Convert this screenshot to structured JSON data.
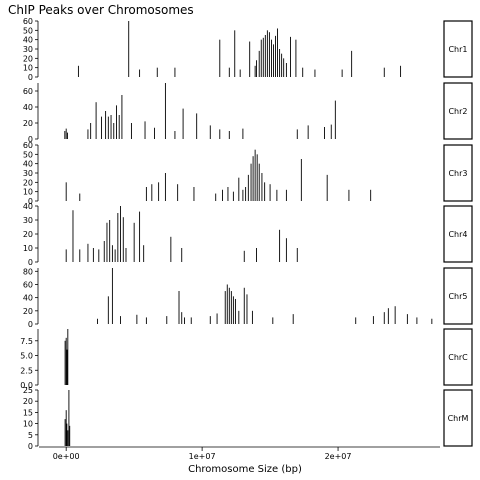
{
  "chart_data": {
    "type": "bar",
    "title": "ChIP Peaks over Chromosomes",
    "xlabel": "Chromosome Size (bp)",
    "ylabel": "",
    "xlim": [
      -2000000,
      27500000
    ],
    "x_ticks": [
      0,
      10000000,
      20000000
    ],
    "x_tick_labels": [
      "0e+00",
      "1e+07",
      "2e+07"
    ],
    "facets": [
      {
        "name": "Chr1",
        "ylim": [
          0,
          60
        ],
        "y_ticks": [
          0,
          10,
          20,
          30,
          40,
          50,
          60
        ],
        "peaks": [
          [
            900000,
            12
          ],
          [
            4600000,
            60
          ],
          [
            5400000,
            8
          ],
          [
            6700000,
            10
          ],
          [
            8000000,
            10
          ],
          [
            11300000,
            40
          ],
          [
            12000000,
            10
          ],
          [
            12400000,
            50
          ],
          [
            12800000,
            8
          ],
          [
            13500000,
            38
          ],
          [
            13900000,
            12
          ],
          [
            14000000,
            18
          ],
          [
            14200000,
            28
          ],
          [
            14350000,
            40
          ],
          [
            14500000,
            42
          ],
          [
            14650000,
            45
          ],
          [
            14800000,
            50
          ],
          [
            14950000,
            48
          ],
          [
            15100000,
            40
          ],
          [
            15250000,
            35
          ],
          [
            15400000,
            44
          ],
          [
            15550000,
            52
          ],
          [
            15700000,
            30
          ],
          [
            15850000,
            25
          ],
          [
            16000000,
            20
          ],
          [
            16200000,
            15
          ],
          [
            16500000,
            43
          ],
          [
            16900000,
            40
          ],
          [
            17400000,
            10
          ],
          [
            18300000,
            8
          ],
          [
            20300000,
            8
          ],
          [
            21000000,
            28
          ],
          [
            23400000,
            10
          ],
          [
            24600000,
            12
          ]
        ]
      },
      {
        "name": "Chr2",
        "ylim": [
          0,
          70
        ],
        "y_ticks": [
          0,
          20,
          40,
          60
        ],
        "peaks": [
          [
            -100000,
            10
          ],
          [
            0,
            13
          ],
          [
            100000,
            8
          ],
          [
            1600000,
            12
          ],
          [
            1800000,
            20
          ],
          [
            2200000,
            46
          ],
          [
            2600000,
            28
          ],
          [
            2900000,
            35
          ],
          [
            3100000,
            28
          ],
          [
            3300000,
            30
          ],
          [
            3500000,
            20
          ],
          [
            3700000,
            42
          ],
          [
            3900000,
            30
          ],
          [
            4100000,
            55
          ],
          [
            4800000,
            20
          ],
          [
            5800000,
            22
          ],
          [
            6500000,
            14
          ],
          [
            7300000,
            70
          ],
          [
            8000000,
            10
          ],
          [
            8600000,
            38
          ],
          [
            9600000,
            32
          ],
          [
            10600000,
            17
          ],
          [
            11300000,
            12
          ],
          [
            12000000,
            10
          ],
          [
            13000000,
            13
          ],
          [
            17000000,
            12
          ],
          [
            17800000,
            17
          ],
          [
            19000000,
            15
          ],
          [
            19500000,
            18
          ],
          [
            19800000,
            48
          ]
        ]
      },
      {
        "name": "Chr3",
        "ylim": [
          0,
          60
        ],
        "y_ticks": [
          0,
          10,
          20,
          30,
          40,
          50,
          60
        ],
        "peaks": [
          [
            0,
            20
          ],
          [
            1000000,
            8
          ],
          [
            5900000,
            15
          ],
          [
            6300000,
            18
          ],
          [
            6800000,
            20
          ],
          [
            7300000,
            30
          ],
          [
            8200000,
            18
          ],
          [
            9400000,
            15
          ],
          [
            11000000,
            8
          ],
          [
            11500000,
            12
          ],
          [
            11900000,
            15
          ],
          [
            12300000,
            10
          ],
          [
            12700000,
            25
          ],
          [
            13000000,
            12
          ],
          [
            13200000,
            15
          ],
          [
            13400000,
            28
          ],
          [
            13600000,
            40
          ],
          [
            13750000,
            48
          ],
          [
            13900000,
            55
          ],
          [
            14050000,
            50
          ],
          [
            14200000,
            40
          ],
          [
            14400000,
            30
          ],
          [
            14600000,
            20
          ],
          [
            15000000,
            18
          ],
          [
            15500000,
            12
          ],
          [
            16200000,
            12
          ],
          [
            17300000,
            45
          ],
          [
            19200000,
            28
          ],
          [
            20800000,
            12
          ],
          [
            22400000,
            12
          ]
        ]
      },
      {
        "name": "Chr4",
        "ylim": [
          0,
          40
        ],
        "y_ticks": [
          0,
          10,
          20,
          30,
          40
        ],
        "peaks": [
          [
            0,
            9
          ],
          [
            500000,
            37
          ],
          [
            1000000,
            9
          ],
          [
            1600000,
            13
          ],
          [
            2000000,
            10
          ],
          [
            2400000,
            9
          ],
          [
            2800000,
            15
          ],
          [
            3000000,
            28
          ],
          [
            3200000,
            30
          ],
          [
            3400000,
            12
          ],
          [
            3600000,
            9
          ],
          [
            3800000,
            35
          ],
          [
            4000000,
            40
          ],
          [
            4200000,
            32
          ],
          [
            4400000,
            10
          ],
          [
            5000000,
            28
          ],
          [
            5400000,
            36
          ],
          [
            5700000,
            12
          ],
          [
            7700000,
            18
          ],
          [
            8500000,
            10
          ],
          [
            13100000,
            8
          ],
          [
            14000000,
            10
          ],
          [
            15700000,
            23
          ],
          [
            16200000,
            17
          ],
          [
            17000000,
            10
          ]
        ]
      },
      {
        "name": "Chr5",
        "ylim": [
          0,
          85
        ],
        "y_ticks": [
          0,
          20,
          40,
          60,
          80
        ],
        "peaks": [
          [
            2300000,
            8
          ],
          [
            3100000,
            42
          ],
          [
            3400000,
            85
          ],
          [
            4000000,
            12
          ],
          [
            5200000,
            14
          ],
          [
            5900000,
            10
          ],
          [
            7400000,
            12
          ],
          [
            8300000,
            50
          ],
          [
            8500000,
            18
          ],
          [
            8700000,
            10
          ],
          [
            9200000,
            10
          ],
          [
            10600000,
            12
          ],
          [
            11100000,
            16
          ],
          [
            11700000,
            50
          ],
          [
            11850000,
            60
          ],
          [
            12000000,
            55
          ],
          [
            12150000,
            50
          ],
          [
            12300000,
            42
          ],
          [
            12450000,
            38
          ],
          [
            12700000,
            20
          ],
          [
            13100000,
            55
          ],
          [
            13300000,
            45
          ],
          [
            13700000,
            20
          ],
          [
            15200000,
            10
          ],
          [
            16700000,
            15
          ],
          [
            21300000,
            10
          ],
          [
            22600000,
            12
          ],
          [
            23400000,
            18
          ],
          [
            23700000,
            24
          ],
          [
            24200000,
            27
          ],
          [
            25100000,
            15
          ],
          [
            25800000,
            10
          ],
          [
            26900000,
            8
          ]
        ]
      },
      {
        "name": "ChrC",
        "ylim": [
          0,
          9.5
        ],
        "y_ticks": [
          0.0,
          2.5,
          5.0,
          7.5
        ],
        "y_tick_labels": [
          "0.0",
          "2.5",
          "5.0",
          "7.5"
        ],
        "peaks": [
          [
            -80000,
            7.5
          ],
          [
            0,
            8.0
          ],
          [
            60000,
            6.0
          ],
          [
            120000,
            9.5
          ]
        ]
      },
      {
        "name": "ChrM",
        "ylim": [
          0,
          25
        ],
        "y_ticks": [
          0,
          5,
          10,
          15,
          20,
          25
        ],
        "peaks": [
          [
            -80000,
            12
          ],
          [
            0,
            16
          ],
          [
            50000,
            10
          ],
          [
            120000,
            7
          ],
          [
            200000,
            25
          ],
          [
            260000,
            9
          ]
        ]
      }
    ]
  }
}
